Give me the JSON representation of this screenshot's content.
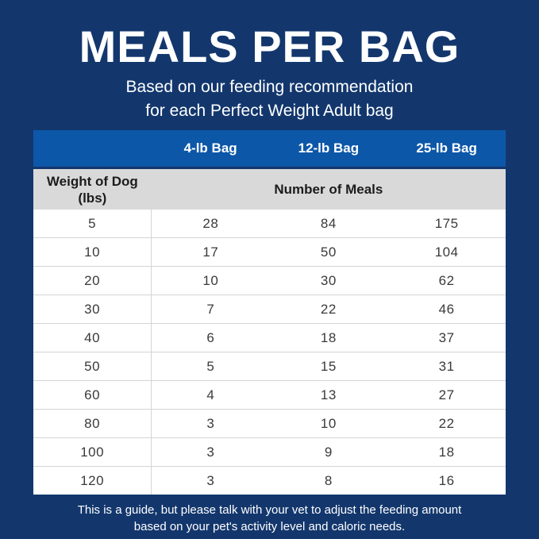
{
  "poster": {
    "title": "MEALS PER BAG",
    "subtitle_lines": [
      "Based on our feeding recommendation",
      "for each Perfect Weight Adult bag"
    ],
    "footnote_lines": [
      "This is a guide, but please talk with your vet to adjust the feeding amount",
      "based on your pet's activity level and caloric needs."
    ]
  },
  "colors": {
    "background_navy": "#13376d",
    "header_blue": "#0d57a8",
    "subheader_gray": "#d9d9d9",
    "text_white": "#ffffff",
    "text_dark": "#1c1c1c",
    "value_gray": "#3a3a3a",
    "grid_line": "#d4d4d4"
  },
  "chart_data": {
    "type": "table",
    "title": "MEALS PER BAG",
    "subtitle": "Based on our feeding recommendation for each Perfect Weight Adult bag",
    "columns": [
      "4-lb Bag",
      "12-lb Bag",
      "25-lb Bag"
    ],
    "row_header_line1": "Weight of Dog",
    "row_header_line2": "(lbs)",
    "values_header": "Number of Meals",
    "rows": [
      {
        "weight": "5",
        "meals": [
          "28",
          "84",
          "175"
        ]
      },
      {
        "weight": "10",
        "meals": [
          "17",
          "50",
          "104"
        ]
      },
      {
        "weight": "20",
        "meals": [
          "10",
          "30",
          "62"
        ]
      },
      {
        "weight": "30",
        "meals": [
          "7",
          "22",
          "46"
        ]
      },
      {
        "weight": "40",
        "meals": [
          "6",
          "18",
          "37"
        ]
      },
      {
        "weight": "50",
        "meals": [
          "5",
          "15",
          "31"
        ]
      },
      {
        "weight": "60",
        "meals": [
          "4",
          "13",
          "27"
        ]
      },
      {
        "weight": "80",
        "meals": [
          "3",
          "10",
          "22"
        ]
      },
      {
        "weight": "100",
        "meals": [
          "3",
          "9",
          "18"
        ]
      },
      {
        "weight": "120",
        "meals": [
          "3",
          "8",
          "16"
        ]
      }
    ],
    "footnote": "This is a guide, but please talk with your vet to adjust the feeding amount based on your pet's activity level and caloric needs."
  }
}
